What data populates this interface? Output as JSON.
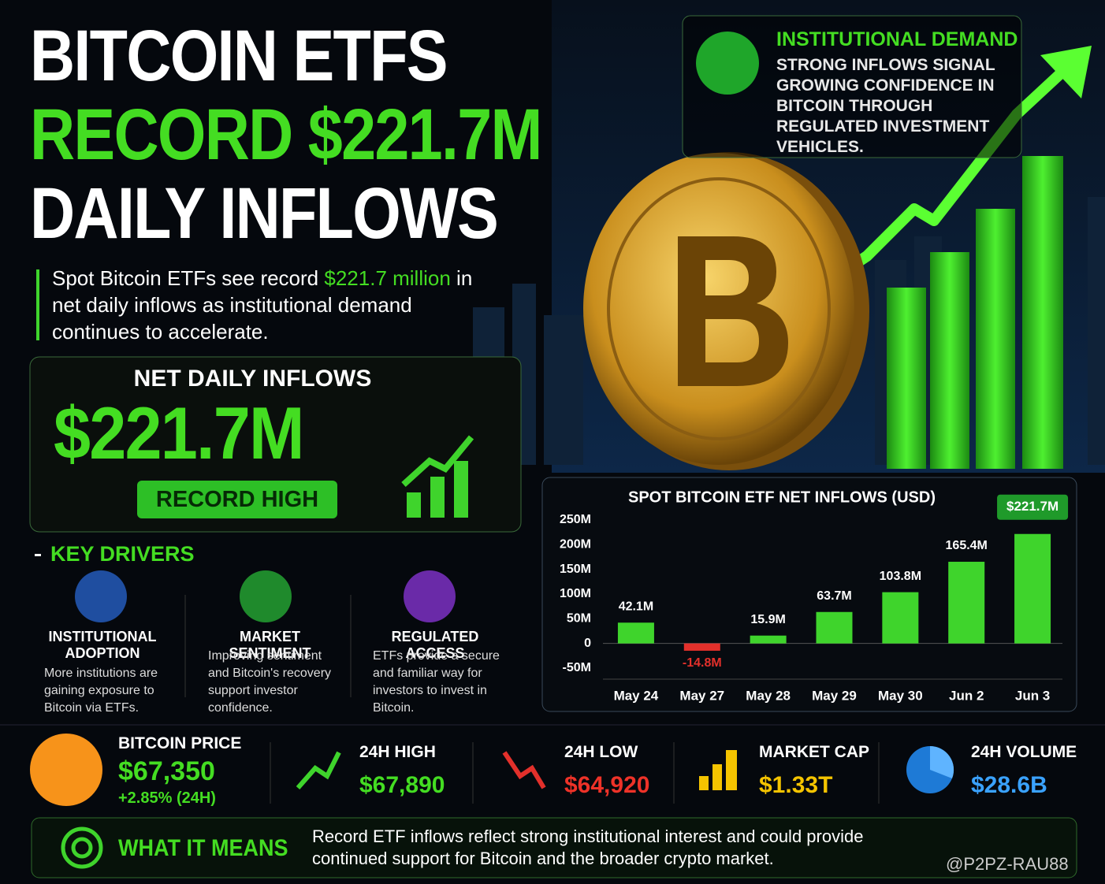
{
  "headline": {
    "lines": [
      "BITCOIN ETFS",
      "RECORD $221.7M",
      "DAILY INFLOWS"
    ]
  },
  "subtitle": {
    "parts": [
      "Spot Bitcoin ETFs see record ",
      "$221.7 million",
      " in net daily inflows as institutional demand continues to accelerate."
    ]
  },
  "inflow_card": {
    "title": "NET DAILY INFLOWS",
    "value": "$221.7M",
    "badge": "RECORD HIGH"
  },
  "institutional": {
    "title": "INSTITUTIONAL DEMAND",
    "text": "STRONG INFLOWS SIGNAL GROWING CONFIDENCE IN BITCOIN THROUGH REGULATED INVESTMENT VEHICLES."
  },
  "key_drivers": {
    "title": "KEY DRIVERS",
    "items": [
      {
        "title": "INSTITUTIONAL ADOPTION",
        "text": "More institutions are gaining exposure to Bitcoin via ETFs."
      },
      {
        "title": "MARKET SENTIMENT",
        "text": "Improving sentiment and Bitcoin's recovery support investor confidence."
      },
      {
        "title": "REGULATED ACCESS",
        "text": "ETFs provide a secure and familiar way for investors to invest in Bitcoin."
      }
    ]
  },
  "stats": [
    {
      "label": "BITCOIN PRICE",
      "value": "$67,350",
      "change": "+2.85% (24H)"
    },
    {
      "label": "24H HIGH",
      "value": "$67,890"
    },
    {
      "label": "24H LOW",
      "value": "$64,920"
    },
    {
      "label": "MARKET CAP",
      "value": "$1.33T"
    },
    {
      "label": "24H VOLUME",
      "value": "$28.6B"
    }
  ],
  "what_it_means": {
    "title": "WHAT IT MEANS",
    "text": "Record ETF inflows reflect strong institutional interest and could provide continued support for Bitcoin and the broader crypto market."
  },
  "watermark": "@P2PZ-RAU88",
  "chart_data": {
    "type": "bar",
    "title": "SPOT BITCOIN ETF NET INFLOWS (USD)",
    "categories": [
      "May 24",
      "May 27",
      "May 28",
      "May 29",
      "May 30",
      "Jun 2",
      "Jun 3"
    ],
    "values": [
      42.1,
      -14.8,
      15.9,
      63.7,
      103.8,
      165.4,
      221.7
    ],
    "value_labels": [
      "42.1M",
      "-14.8M",
      "15.9M",
      "63.7M",
      "103.8M",
      "165.4M",
      "$221.7M"
    ],
    "color": "#3fd42c",
    "negative_color": "#e3302b",
    "ylim": [
      -50,
      250
    ],
    "yticks": [
      {
        "value": -50,
        "label": "-50M"
      },
      0,
      {
        "value": 50,
        "label": "50M"
      },
      {
        "value": 100,
        "label": "100M"
      },
      {
        "value": 150,
        "label": "150M"
      },
      {
        "value": 200,
        "label": "200M"
      },
      {
        "value": 250,
        "label": "250M"
      }
    ],
    "grid": false
  }
}
